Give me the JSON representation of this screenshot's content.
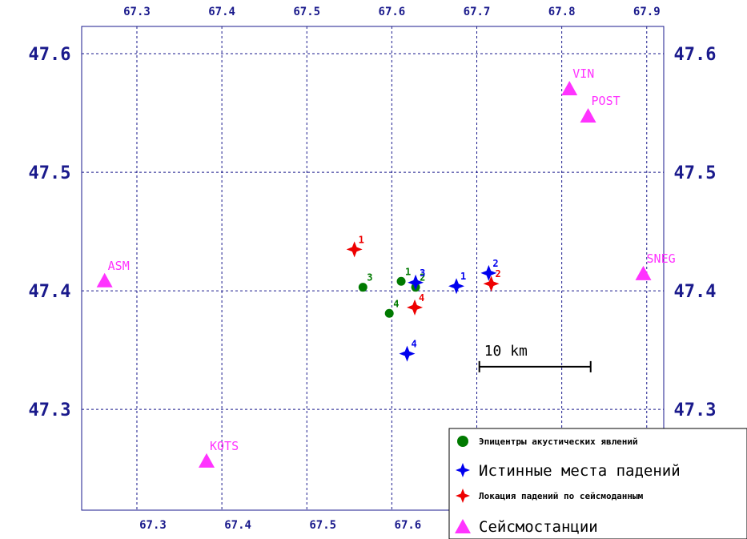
{
  "colors": {
    "frame": "#1a1a8c",
    "grid": "#1a1a8c",
    "station": "#ff33ff",
    "epicenter": "#007a00",
    "true_impact": "#0000ee",
    "seismic_location": "#ee0000"
  },
  "chart_data": {
    "type": "scatter",
    "xlim": [
      67.235,
      67.92
    ],
    "ylim": [
      47.215,
      47.623
    ],
    "x_ticks": [
      "67.3",
      "67.4",
      "67.5",
      "67.6",
      "67.7",
      "67.8",
      "67.9"
    ],
    "x_tick_values": [
      67.3,
      67.4,
      67.5,
      67.6,
      67.7,
      67.8,
      67.9
    ],
    "y_ticks": [
      "47.3",
      "47.4",
      "47.5",
      "47.6"
    ],
    "y_tick_values": [
      47.3,
      47.4,
      47.5,
      47.6
    ],
    "grid": true,
    "scale_bar": {
      "label": "10 km",
      "from_x": 67.703,
      "to_x": 67.834,
      "y": 47.336
    },
    "series": [
      {
        "key": "epicenters",
        "marker": "circle",
        "points": [
          {
            "label": "1",
            "x": 67.611,
            "y": 47.408
          },
          {
            "label": "2",
            "x": 67.628,
            "y": 47.403
          },
          {
            "label": "3",
            "x": 67.566,
            "y": 47.403
          },
          {
            "label": "4",
            "x": 67.597,
            "y": 47.381
          }
        ]
      },
      {
        "key": "true_impacts",
        "marker": "star4",
        "points": [
          {
            "label": "1",
            "x": 67.676,
            "y": 47.404
          },
          {
            "label": "2",
            "x": 67.714,
            "y": 47.415
          },
          {
            "label": "3",
            "x": 67.628,
            "y": 47.407
          },
          {
            "label": "4",
            "x": 67.618,
            "y": 47.347
          }
        ]
      },
      {
        "key": "seismic_locations",
        "marker": "star4",
        "points": [
          {
            "label": "1",
            "x": 67.556,
            "y": 47.435
          },
          {
            "label": "2",
            "x": 67.717,
            "y": 47.406
          },
          {
            "label": "4",
            "x": 67.627,
            "y": 47.386
          }
        ]
      },
      {
        "key": "stations",
        "marker": "triangle",
        "points": [
          {
            "label": "VIN",
            "x": 67.809,
            "y": 47.571
          },
          {
            "label": "POST",
            "x": 67.831,
            "y": 47.548
          },
          {
            "label": "ASM",
            "x": 67.262,
            "y": 47.409
          },
          {
            "label": "SNEG",
            "x": 67.896,
            "y": 47.415
          },
          {
            "label": "KOTS",
            "x": 67.382,
            "y": 47.257
          }
        ]
      }
    ],
    "legend": {
      "position": "bottom-right",
      "entries": [
        {
          "series": "epicenters",
          "text": "Эпицентры акустических явлений"
        },
        {
          "series": "true_impacts",
          "text": "Истинные места падений"
        },
        {
          "series": "seismic_locations",
          "text": "Локация падений по сейсмоданным"
        },
        {
          "series": "stations",
          "text": "Сейсмостанции"
        }
      ]
    }
  }
}
